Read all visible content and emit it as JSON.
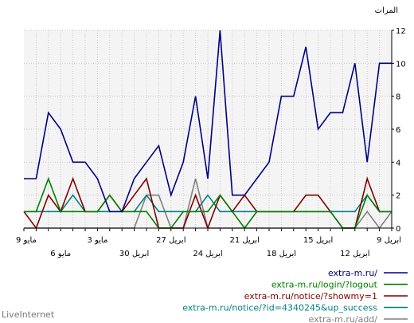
{
  "chart_data": {
    "type": "line",
    "ylabel": "المرات",
    "ylim": [
      0,
      12
    ],
    "y_ticks": [
      0,
      2,
      4,
      6,
      8,
      10,
      12
    ],
    "grid": true,
    "legend_position": "bottom-right",
    "x": [
      "2024-05-09",
      "2024-05-08",
      "2024-05-07",
      "2024-05-06",
      "2024-05-05",
      "2024-05-04",
      "2024-05-03",
      "2024-05-02",
      "2024-05-01",
      "2024-04-30",
      "2024-04-29",
      "2024-04-28",
      "2024-04-27",
      "2024-04-26",
      "2024-04-25",
      "2024-04-24",
      "2024-04-23",
      "2024-04-22",
      "2024-04-21",
      "2024-04-20",
      "2024-04-19",
      "2024-04-18",
      "2024-04-17",
      "2024-04-16",
      "2024-04-15",
      "2024-04-14",
      "2024-04-13",
      "2024-04-12",
      "2024-04-11",
      "2024-04-10",
      "2024-04-09"
    ],
    "x_tick_labels_row1": [
      {
        "x": "2024-05-09",
        "label": "9 مايو"
      },
      {
        "x": "2024-05-03",
        "label": "3 مايو"
      },
      {
        "x": "2024-04-27",
        "label": "27 ابريل"
      },
      {
        "x": "2024-04-21",
        "label": "21 ابريل"
      },
      {
        "x": "2024-04-15",
        "label": "15 ابريل"
      },
      {
        "x": "2024-04-09",
        "label": "9 ابريل"
      }
    ],
    "x_tick_labels_row2": [
      {
        "x": "2024-05-06",
        "label": "6 مايو"
      },
      {
        "x": "2024-04-30",
        "label": "30 ابريل"
      },
      {
        "x": "2024-04-24",
        "label": "24 ابريل"
      },
      {
        "x": "2024-04-18",
        "label": "18 ابريل"
      },
      {
        "x": "2024-04-12",
        "label": "12 ابريل"
      }
    ],
    "series": [
      {
        "name": "extra-m.ru/",
        "color": "#000080",
        "values": [
          3,
          3,
          7,
          6,
          4,
          4,
          3,
          1,
          1,
          3,
          4,
          5,
          2,
          4,
          8,
          3,
          12,
          2,
          2,
          3,
          4,
          8,
          8,
          11,
          6,
          7,
          7,
          10,
          4,
          10,
          10
        ]
      },
      {
        "name": "extra-m.ru/login/?logout",
        "color": "#008000",
        "values": [
          1,
          1,
          3,
          1,
          1,
          1,
          1,
          2,
          1,
          1,
          1,
          0,
          0,
          1,
          1,
          1,
          2,
          1,
          0,
          1,
          1,
          1,
          1,
          1,
          1,
          1,
          0,
          0,
          2,
          1,
          1
        ]
      },
      {
        "name": "extra-m.ru/notice/?showmy=1",
        "color": "#800000",
        "values": [
          1,
          0,
          2,
          1,
          3,
          1,
          1,
          2,
          1,
          2,
          3,
          0,
          0,
          0,
          2,
          0,
          2,
          1,
          2,
          1,
          1,
          1,
          1,
          2,
          2,
          1,
          0,
          0,
          3,
          1,
          1
        ]
      },
      {
        "name": "extra-m.ru/notice/?id=4340245&up_success",
        "color": "#008080",
        "values": [
          1,
          1,
          1,
          1,
          2,
          1,
          1,
          1,
          1,
          1,
          2,
          1,
          1,
          1,
          1,
          2,
          1,
          1,
          1,
          1,
          1,
          1,
          1,
          1,
          1,
          1,
          1,
          1,
          2,
          1,
          1
        ]
      },
      {
        "name": "extra-m.ru/add/",
        "color": "#808080",
        "values": [
          0,
          0,
          0,
          0,
          0,
          0,
          0,
          0,
          0,
          0,
          2,
          2,
          0,
          0,
          3,
          0,
          0,
          0,
          0,
          0,
          0,
          0,
          0,
          0,
          0,
          0,
          0,
          0,
          1,
          0,
          1
        ]
      }
    ]
  },
  "footer": {
    "text": "LiveInternet"
  }
}
